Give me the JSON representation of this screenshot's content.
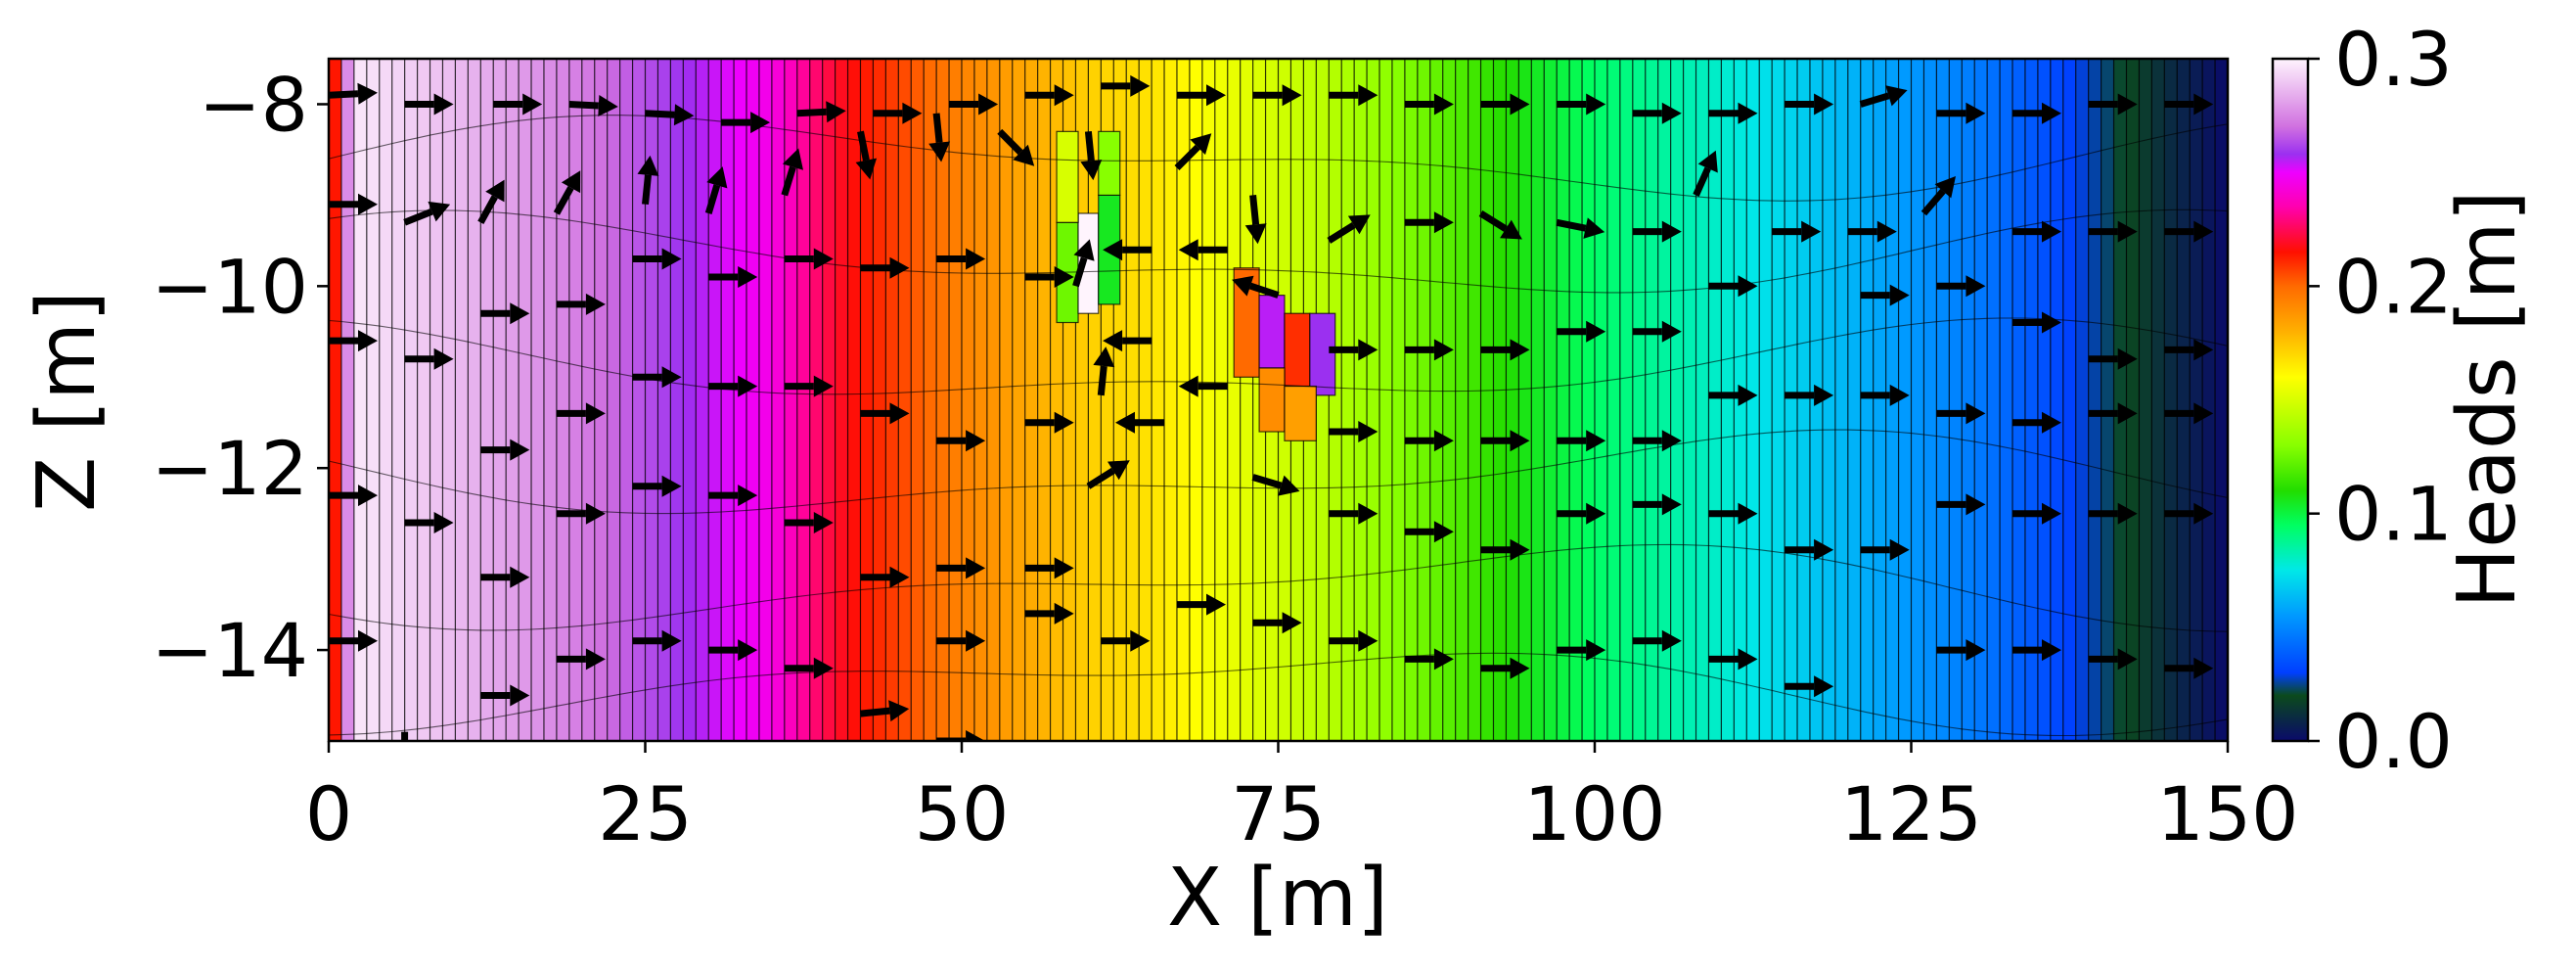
{
  "chart_data": {
    "type": "heatmap",
    "subtype": "cross-section head field with flow arrows (quiver)",
    "xlabel": "X [m]",
    "ylabel": "Z [m]",
    "xlim": [
      0,
      150
    ],
    "ylim": [
      -15,
      -7.5
    ],
    "x_ticks": [
      0,
      25,
      50,
      75,
      100,
      125,
      150
    ],
    "x_tick_labels": [
      "0",
      "25",
      "50",
      "75",
      "100",
      "125",
      "150"
    ],
    "y_ticks": [
      -8,
      -10,
      -12,
      -14
    ],
    "y_tick_labels": [
      "−8",
      "−10",
      "−12",
      "−14"
    ],
    "colorbar": {
      "label": "Heads [m]",
      "range": [
        0.0,
        0.3
      ],
      "ticks": [
        0.0,
        0.1,
        0.2,
        0.3
      ],
      "tick_labels": [
        "0.0",
        "0.1",
        "0.2",
        "0.3"
      ],
      "colormap": "gist_ncar_r",
      "stops": [
        {
          "v": 0.0,
          "c": "#0a0a6a"
        },
        {
          "v": 0.02,
          "c": "#0b4a1c"
        },
        {
          "v": 0.03,
          "c": "#003fff"
        },
        {
          "v": 0.055,
          "c": "#0099ff"
        },
        {
          "v": 0.075,
          "c": "#00e8e8"
        },
        {
          "v": 0.095,
          "c": "#00ff60"
        },
        {
          "v": 0.11,
          "c": "#22dd00"
        },
        {
          "v": 0.13,
          "c": "#88ff00"
        },
        {
          "v": 0.16,
          "c": "#ffff00"
        },
        {
          "v": 0.18,
          "c": "#ffb000"
        },
        {
          "v": 0.2,
          "c": "#ff6a00"
        },
        {
          "v": 0.215,
          "c": "#ff1000"
        },
        {
          "v": 0.235,
          "c": "#ff00b0"
        },
        {
          "v": 0.25,
          "c": "#ee00ff"
        },
        {
          "v": 0.258,
          "c": "#9b30f0"
        },
        {
          "v": 0.27,
          "c": "#d070e0"
        },
        {
          "v": 0.3,
          "c": "#fff4fd"
        }
      ]
    },
    "head_profile_x": [
      0,
      2,
      10,
      20,
      25,
      35,
      40,
      50,
      60,
      65,
      70,
      80,
      90,
      100,
      110,
      120,
      130,
      140,
      145,
      150
    ],
    "head_profile_h": [
      0.214,
      0.297,
      0.287,
      0.273,
      0.264,
      0.245,
      0.22,
      0.193,
      0.172,
      0.167,
      0.157,
      0.14,
      0.117,
      0.094,
      0.079,
      0.062,
      0.047,
      0.025,
      0.011,
      0.0
    ],
    "anomalies": [
      {
        "x0": 57.5,
        "x1": 59.2,
        "z0": -10.4,
        "z1": -9.3,
        "head": 0.125
      },
      {
        "x0": 59.2,
        "x1": 60.8,
        "z0": -10.3,
        "z1": -9.2,
        "head": 0.3
      },
      {
        "x0": 60.8,
        "x1": 62.5,
        "z0": -10.2,
        "z1": -9.0,
        "head": 0.105
      },
      {
        "x0": 57.5,
        "x1": 59.2,
        "z0": -9.3,
        "z1": -8.3,
        "head": 0.15
      },
      {
        "x0": 60.8,
        "x1": 62.5,
        "z0": -9.0,
        "z1": -8.3,
        "head": 0.13
      },
      {
        "x0": 71.5,
        "x1": 73.5,
        "z0": -11.0,
        "z1": -9.8,
        "head": 0.2
      },
      {
        "x0": 73.5,
        "x1": 75.5,
        "z0": -10.9,
        "z1": -10.1,
        "head": 0.255
      },
      {
        "x0": 75.5,
        "x1": 77.5,
        "z0": -11.1,
        "z1": -10.3,
        "head": 0.21
      },
      {
        "x0": 77.5,
        "x1": 79.5,
        "z0": -11.2,
        "z1": -10.3,
        "head": 0.258
      },
      {
        "x0": 73.5,
        "x1": 75.5,
        "z0": -11.6,
        "z1": -10.9,
        "head": 0.19
      },
      {
        "x0": 75.5,
        "x1": 78.0,
        "z0": -11.7,
        "z1": -11.1,
        "head": 0.185
      }
    ],
    "arrows": [
      {
        "x": 0,
        "z": -7.9,
        "dx": 1,
        "dz": 0.05
      },
      {
        "x": 6,
        "z": -8.0,
        "dx": 1,
        "dz": 0
      },
      {
        "x": 13,
        "z": -8.0,
        "dx": 1,
        "dz": 0
      },
      {
        "x": 19,
        "z": -8.0,
        "dx": 1,
        "dz": -0.05
      },
      {
        "x": 25,
        "z": -8.1,
        "dx": 1,
        "dz": -0.05
      },
      {
        "x": 31,
        "z": -8.2,
        "dx": 1,
        "dz": 0
      },
      {
        "x": 37,
        "z": -8.1,
        "dx": 1,
        "dz": 0.05
      },
      {
        "x": 43,
        "z": -8.1,
        "dx": 1,
        "dz": 0
      },
      {
        "x": 49,
        "z": -8.0,
        "dx": 1,
        "dz": 0
      },
      {
        "x": 55,
        "z": -7.9,
        "dx": 1,
        "dz": 0
      },
      {
        "x": 61,
        "z": -7.8,
        "dx": 1,
        "dz": 0
      },
      {
        "x": 67,
        "z": -7.9,
        "dx": 1,
        "dz": 0
      },
      {
        "x": 73,
        "z": -7.9,
        "dx": 1,
        "dz": 0
      },
      {
        "x": 79,
        "z": -7.9,
        "dx": 1,
        "dz": 0
      },
      {
        "x": 85,
        "z": -8.0,
        "dx": 1,
        "dz": 0
      },
      {
        "x": 91,
        "z": -8.0,
        "dx": 1,
        "dz": 0
      },
      {
        "x": 97,
        "z": -8.0,
        "dx": 1,
        "dz": 0
      },
      {
        "x": 103,
        "z": -8.1,
        "dx": 1,
        "dz": 0
      },
      {
        "x": 109,
        "z": -8.1,
        "dx": 1,
        "dz": 0
      },
      {
        "x": 115,
        "z": -8.0,
        "dx": 1,
        "dz": 0
      },
      {
        "x": 121,
        "z": -8.0,
        "dx": 1,
        "dz": 0.3
      },
      {
        "x": 127,
        "z": -8.1,
        "dx": 1,
        "dz": 0
      },
      {
        "x": 133,
        "z": -8.1,
        "dx": 1,
        "dz": 0
      },
      {
        "x": 139,
        "z": -8.0,
        "dx": 1,
        "dz": 0
      },
      {
        "x": 145,
        "z": -8.0,
        "dx": 1,
        "dz": 0
      },
      {
        "x": 0,
        "z": -9.1,
        "dx": 1,
        "dz": 0
      },
      {
        "x": 6,
        "z": -9.3,
        "dx": 1,
        "dz": 0.4
      },
      {
        "x": 12,
        "z": -9.3,
        "dx": 0.5,
        "dz": 0.9
      },
      {
        "x": 18,
        "z": -9.2,
        "dx": 0.5,
        "dz": 0.9
      },
      {
        "x": 25,
        "z": -9.1,
        "dx": 0.1,
        "dz": 1
      },
      {
        "x": 30,
        "z": -9.2,
        "dx": 0.3,
        "dz": 1
      },
      {
        "x": 36,
        "z": -9.0,
        "dx": 0.3,
        "dz": 1
      },
      {
        "x": 42,
        "z": -8.3,
        "dx": 0.2,
        "dz": -1
      },
      {
        "x": 48,
        "z": -8.1,
        "dx": 0.1,
        "dz": -1
      },
      {
        "x": 53,
        "z": -8.3,
        "dx": 0.6,
        "dz": -0.6
      },
      {
        "x": 60,
        "z": -8.3,
        "dx": 0.1,
        "dz": -1
      },
      {
        "x": 67,
        "z": -8.7,
        "dx": 0.7,
        "dz": 0.7
      },
      {
        "x": 73,
        "z": -9.0,
        "dx": 0.1,
        "dz": -1
      },
      {
        "x": 79,
        "z": -9.5,
        "dx": 0.8,
        "dz": 0.5
      },
      {
        "x": 85,
        "z": -9.3,
        "dx": 1,
        "dz": 0
      },
      {
        "x": 91,
        "z": -9.2,
        "dx": 0.8,
        "dz": -0.5
      },
      {
        "x": 97,
        "z": -9.3,
        "dx": 1,
        "dz": -0.2
      },
      {
        "x": 103,
        "z": -9.4,
        "dx": 1,
        "dz": 0
      },
      {
        "x": 108,
        "z": -9.0,
        "dx": 0.4,
        "dz": 0.9
      },
      {
        "x": 114,
        "z": -9.4,
        "dx": 1,
        "dz": 0
      },
      {
        "x": 120,
        "z": -9.4,
        "dx": 1,
        "dz": 0
      },
      {
        "x": 126,
        "z": -9.2,
        "dx": 0.6,
        "dz": 0.7
      },
      {
        "x": 133,
        "z": -9.4,
        "dx": 1,
        "dz": 0
      },
      {
        "x": 139,
        "z": -9.4,
        "dx": 1,
        "dz": 0
      },
      {
        "x": 145,
        "z": -9.4,
        "dx": 1,
        "dz": 0
      },
      {
        "x": 0,
        "z": -10.6,
        "dx": 1,
        "dz": 0
      },
      {
        "x": 6,
        "z": -10.8,
        "dx": 1,
        "dz": 0
      },
      {
        "x": 12,
        "z": -10.3,
        "dx": 1,
        "dz": 0
      },
      {
        "x": 18,
        "z": -10.2,
        "dx": 1,
        "dz": 0
      },
      {
        "x": 24,
        "z": -9.7,
        "dx": 1,
        "dz": 0
      },
      {
        "x": 30,
        "z": -9.9,
        "dx": 1,
        "dz": 0
      },
      {
        "x": 36,
        "z": -9.7,
        "dx": 1,
        "dz": 0
      },
      {
        "x": 42,
        "z": -9.8,
        "dx": 1,
        "dz": 0
      },
      {
        "x": 48,
        "z": -9.7,
        "dx": 1,
        "dz": 0
      },
      {
        "x": 55,
        "z": -9.9,
        "dx": 1,
        "dz": 0
      },
      {
        "x": 59,
        "z": -10.0,
        "dx": 0.3,
        "dz": 1
      },
      {
        "x": 65,
        "z": -9.6,
        "dx": -1,
        "dz": 0
      },
      {
        "x": 71,
        "z": -9.6,
        "dx": -1,
        "dz": 0
      },
      {
        "x": 75,
        "z": -10.1,
        "dx": -0.9,
        "dz": 0.3
      },
      {
        "x": 79,
        "z": -10.7,
        "dx": 1,
        "dz": 0
      },
      {
        "x": 85,
        "z": -10.7,
        "dx": 1,
        "dz": 0
      },
      {
        "x": 91,
        "z": -10.7,
        "dx": 1,
        "dz": 0
      },
      {
        "x": 97,
        "z": -10.5,
        "dx": 1,
        "dz": 0
      },
      {
        "x": 103,
        "z": -10.5,
        "dx": 1,
        "dz": 0
      },
      {
        "x": 109,
        "z": -10.0,
        "dx": 1,
        "dz": 0
      },
      {
        "x": 121,
        "z": -10.1,
        "dx": 1,
        "dz": 0
      },
      {
        "x": 127,
        "z": -10.0,
        "dx": 1,
        "dz": 0
      },
      {
        "x": 133,
        "z": -10.4,
        "dx": 1,
        "dz": 0
      },
      {
        "x": 139,
        "z": -10.8,
        "dx": 1,
        "dz": 0
      },
      {
        "x": 145,
        "z": -10.7,
        "dx": 1,
        "dz": 0
      },
      {
        "x": 0,
        "z": -12.3,
        "dx": 1,
        "dz": 0
      },
      {
        "x": 6,
        "z": -12.6,
        "dx": 1,
        "dz": 0
      },
      {
        "x": 12,
        "z": -11.8,
        "dx": 1,
        "dz": 0
      },
      {
        "x": 18,
        "z": -11.4,
        "dx": 1,
        "dz": 0
      },
      {
        "x": 24,
        "z": -11.0,
        "dx": 1,
        "dz": 0
      },
      {
        "x": 30,
        "z": -11.1,
        "dx": 1,
        "dz": 0
      },
      {
        "x": 36,
        "z": -11.1,
        "dx": 1,
        "dz": 0
      },
      {
        "x": 42,
        "z": -11.4,
        "dx": 1,
        "dz": 0
      },
      {
        "x": 48,
        "z": -11.7,
        "dx": 1,
        "dz": 0
      },
      {
        "x": 55,
        "z": -11.5,
        "dx": 1,
        "dz": 0
      },
      {
        "x": 61,
        "z": -11.2,
        "dx": 0.1,
        "dz": 1
      },
      {
        "x": 65,
        "z": -10.6,
        "dx": -1,
        "dz": 0
      },
      {
        "x": 71,
        "z": -11.1,
        "dx": -1,
        "dz": 0
      },
      {
        "x": 79,
        "z": -11.6,
        "dx": 1,
        "dz": 0
      },
      {
        "x": 85,
        "z": -11.7,
        "dx": 1,
        "dz": 0
      },
      {
        "x": 91,
        "z": -11.7,
        "dx": 1,
        "dz": 0
      },
      {
        "x": 97,
        "z": -11.7,
        "dx": 1,
        "dz": 0
      },
      {
        "x": 103,
        "z": -11.7,
        "dx": 1,
        "dz": 0
      },
      {
        "x": 109,
        "z": -11.2,
        "dx": 1,
        "dz": 0
      },
      {
        "x": 115,
        "z": -11.2,
        "dx": 1,
        "dz": 0
      },
      {
        "x": 121,
        "z": -11.2,
        "dx": 1,
        "dz": 0
      },
      {
        "x": 127,
        "z": -11.4,
        "dx": 1,
        "dz": 0
      },
      {
        "x": 133,
        "z": -11.5,
        "dx": 1,
        "dz": 0
      },
      {
        "x": 139,
        "z": -11.4,
        "dx": 1,
        "dz": 0
      },
      {
        "x": 145,
        "z": -11.4,
        "dx": 1,
        "dz": 0
      },
      {
        "x": 0,
        "z": -13.9,
        "dx": 1,
        "dz": 0
      },
      {
        "x": 6,
        "z": -14.9,
        "dx": 0,
        "dz": -1
      },
      {
        "x": 12,
        "z": -13.2,
        "dx": 1,
        "dz": 0
      },
      {
        "x": 18,
        "z": -12.5,
        "dx": 1,
        "dz": 0
      },
      {
        "x": 24,
        "z": -12.2,
        "dx": 1,
        "dz": 0
      },
      {
        "x": 30,
        "z": -12.3,
        "dx": 1,
        "dz": 0
      },
      {
        "x": 36,
        "z": -12.6,
        "dx": 1,
        "dz": 0
      },
      {
        "x": 42,
        "z": -13.2,
        "dx": 1,
        "dz": 0
      },
      {
        "x": 48,
        "z": -13.1,
        "dx": 1,
        "dz": 0
      },
      {
        "x": 55,
        "z": -13.1,
        "dx": 1,
        "dz": 0
      },
      {
        "x": 60,
        "z": -12.2,
        "dx": 0.8,
        "dz": 0.5
      },
      {
        "x": 66,
        "z": -11.5,
        "dx": -1,
        "dz": 0
      },
      {
        "x": 73,
        "z": -12.1,
        "dx": 1,
        "dz": -0.3
      },
      {
        "x": 79,
        "z": -12.5,
        "dx": 1,
        "dz": 0
      },
      {
        "x": 85,
        "z": -12.7,
        "dx": 1,
        "dz": 0
      },
      {
        "x": 91,
        "z": -12.9,
        "dx": 1,
        "dz": 0
      },
      {
        "x": 97,
        "z": -12.5,
        "dx": 1,
        "dz": 0
      },
      {
        "x": 103,
        "z": -12.4,
        "dx": 1,
        "dz": 0
      },
      {
        "x": 109,
        "z": -12.5,
        "dx": 1,
        "dz": 0
      },
      {
        "x": 115,
        "z": -12.9,
        "dx": 1,
        "dz": 0
      },
      {
        "x": 121,
        "z": -12.9,
        "dx": 1,
        "dz": 0
      },
      {
        "x": 127,
        "z": -12.4,
        "dx": 1,
        "dz": 0
      },
      {
        "x": 133,
        "z": -12.5,
        "dx": 1,
        "dz": 0
      },
      {
        "x": 139,
        "z": -12.5,
        "dx": 1,
        "dz": 0
      },
      {
        "x": 145,
        "z": -12.5,
        "dx": 1,
        "dz": 0
      },
      {
        "x": 12,
        "z": -14.5,
        "dx": 1,
        "dz": 0
      },
      {
        "x": 18,
        "z": -14.1,
        "dx": 1,
        "dz": 0
      },
      {
        "x": 24,
        "z": -13.9,
        "dx": 1,
        "dz": 0
      },
      {
        "x": 30,
        "z": -14.0,
        "dx": 1,
        "dz": 0
      },
      {
        "x": 36,
        "z": -14.2,
        "dx": 1,
        "dz": 0
      },
      {
        "x": 42,
        "z": -14.7,
        "dx": 1,
        "dz": 0.1
      },
      {
        "x": 48,
        "z": -13.9,
        "dx": 1,
        "dz": 0
      },
      {
        "x": 48,
        "z": -15.0,
        "dx": 1,
        "dz": 0
      },
      {
        "x": 55,
        "z": -13.6,
        "dx": 1,
        "dz": 0
      },
      {
        "x": 61,
        "z": -13.9,
        "dx": 1,
        "dz": 0
      },
      {
        "x": 67,
        "z": -13.5,
        "dx": 1,
        "dz": 0
      },
      {
        "x": 73,
        "z": -13.7,
        "dx": 1,
        "dz": 0
      },
      {
        "x": 79,
        "z": -13.9,
        "dx": 1,
        "dz": 0
      },
      {
        "x": 85,
        "z": -14.1,
        "dx": 1,
        "dz": 0
      },
      {
        "x": 91,
        "z": -14.2,
        "dx": 1,
        "dz": 0
      },
      {
        "x": 97,
        "z": -14.0,
        "dx": 1,
        "dz": 0
      },
      {
        "x": 103,
        "z": -13.9,
        "dx": 1,
        "dz": 0
      },
      {
        "x": 109,
        "z": -14.1,
        "dx": 1,
        "dz": 0
      },
      {
        "x": 115,
        "z": -14.4,
        "dx": 1,
        "dz": 0
      },
      {
        "x": 127,
        "z": -14.0,
        "dx": 1,
        "dz": 0
      },
      {
        "x": 133,
        "z": -14.0,
        "dx": 1,
        "dz": 0
      },
      {
        "x": 139,
        "z": -14.1,
        "dx": 1,
        "dz": 0
      },
      {
        "x": 145,
        "z": -14.2,
        "dx": 1,
        "dz": 0
      }
    ]
  }
}
